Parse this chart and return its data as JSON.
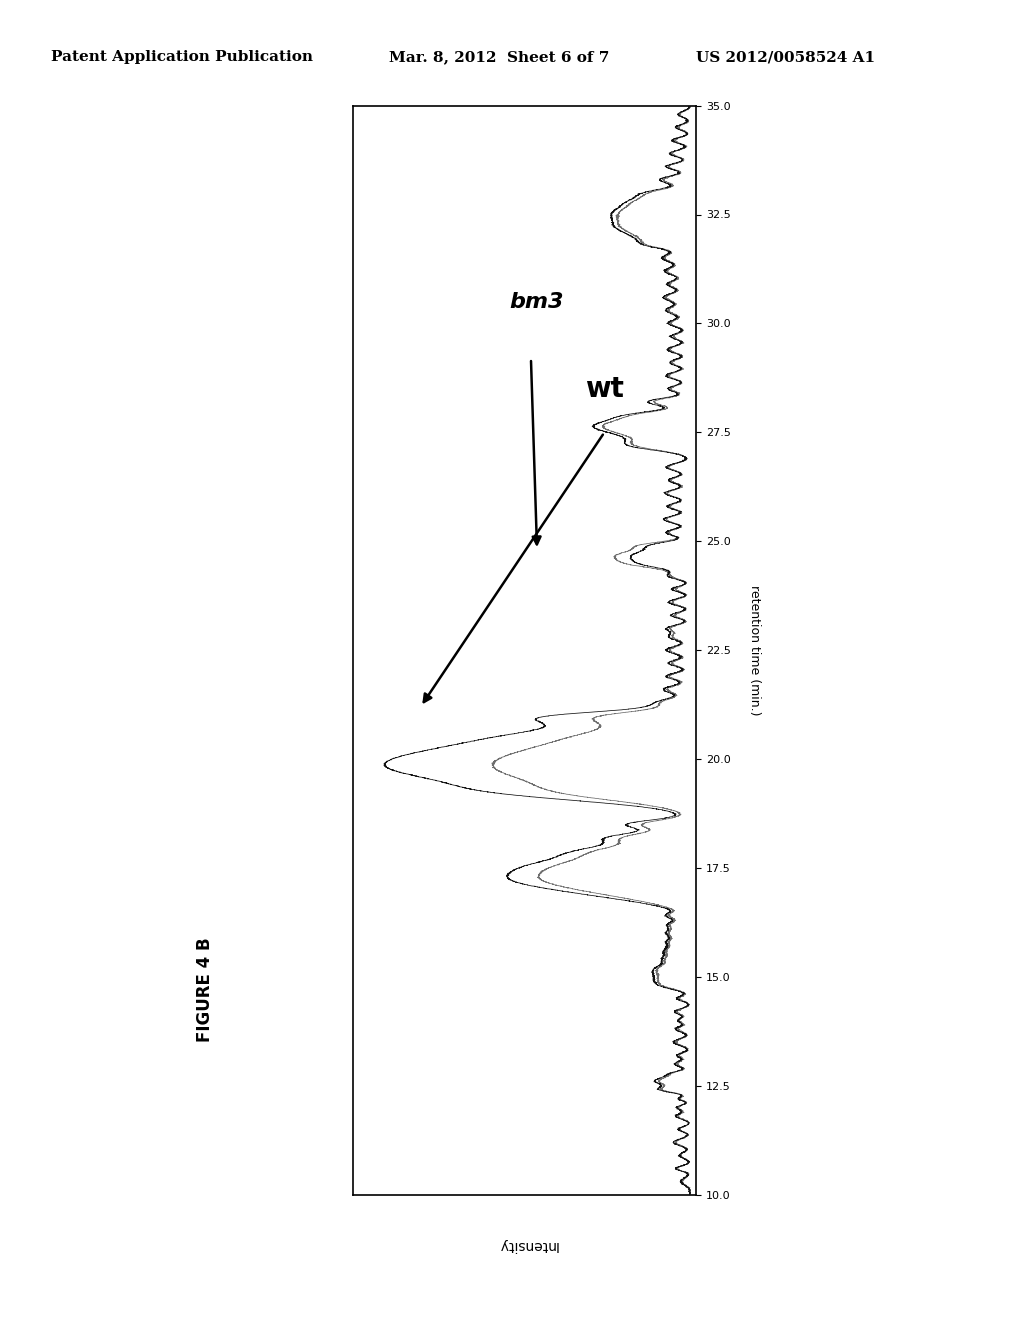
{
  "header_left": "Patent Application Publication",
  "header_mid": "Mar. 8, 2012  Sheet 6 of 7",
  "header_right": "US 2012/0058524 A1",
  "figure_label": "FIGURE 4 B",
  "xlabel": "Intensity",
  "ylabel": "retention time (min.)",
  "xmin": 10.0,
  "xmax": 35.0,
  "label_wt": "wt",
  "label_bm3": "bm3",
  "background_color": "#ffffff",
  "line_color1": "#000000",
  "line_color2": "#777777",
  "header_fontsize": 11,
  "figure_label_fontsize": 12,
  "axis_label_fontsize": 9,
  "tick_fontsize": 8,
  "annotation_fontsize_wt": 20,
  "annotation_fontsize_bm3": 16
}
